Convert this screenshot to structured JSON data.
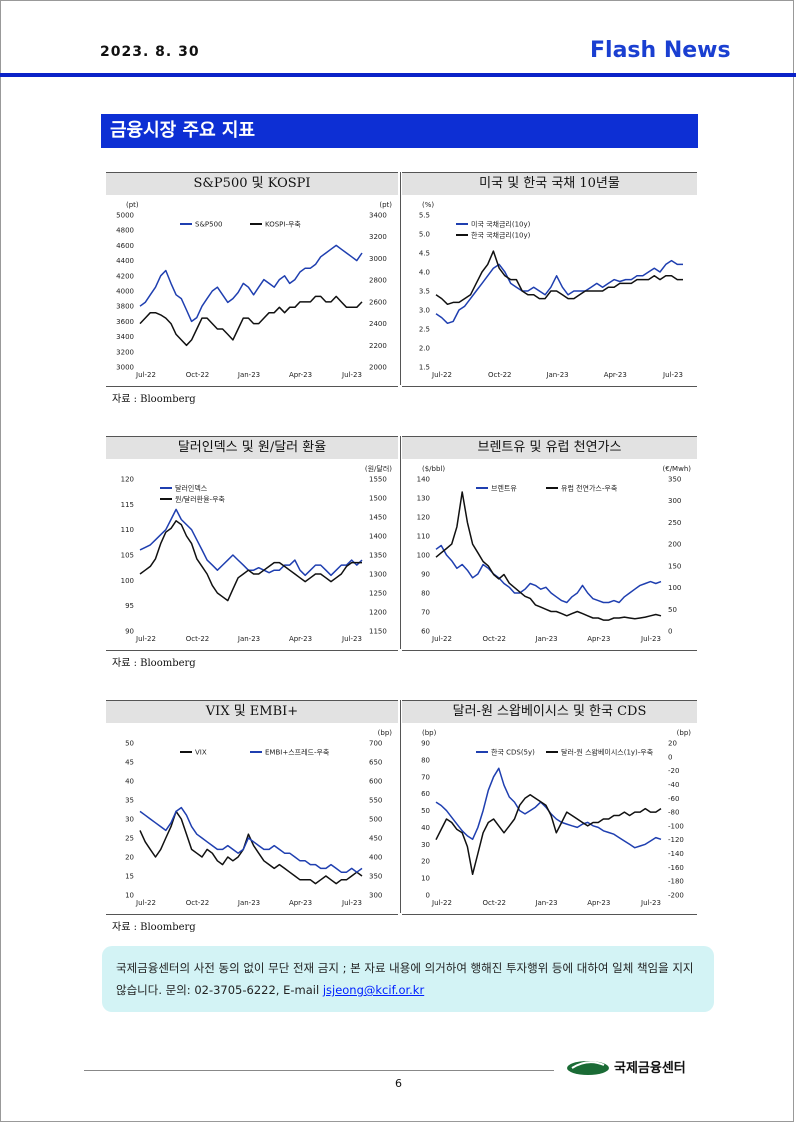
{
  "header": {
    "date": "2023. 8. 30",
    "title": "Flash News"
  },
  "section_title": "금융시장 주요 지표",
  "sources": [
    "자료 : Bloomberg",
    "자료 : Bloomberg",
    "자료 : Bloomberg"
  ],
  "notice": {
    "text": "국제금융센터의 사전 동의 없이 무단 전재 금지 ; 본 자료 내용에 의거하여 행해진 투자행위 등에 대하여 일체 책임을 지지 않습니다. 문의: 02-3705-6222, E-mail ",
    "email": "jsjeong@kcif.or.kr"
  },
  "footer": {
    "page": "6",
    "org": "국제금융센터"
  },
  "colors": {
    "blue": "#1f3fb0",
    "black": "#111111",
    "header_blue": "#0d2fd4"
  },
  "chart_data": [
    {
      "title": "S&P500 및 KOSPI",
      "type": "line",
      "left_unit": "(pt)",
      "right_unit": "(pt)",
      "left_ticks": [
        "5000",
        "4800",
        "4600",
        "4400",
        "4200",
        "4000",
        "3800",
        "3600",
        "3400",
        "3200",
        "3000"
      ],
      "right_ticks": [
        "3400",
        "3200",
        "3000",
        "2800",
        "2600",
        "2400",
        "2200",
        "2000"
      ],
      "x_ticks": [
        "Jul-22",
        "Oct-22",
        "Jan-23",
        "Apr-23",
        "Jul-23"
      ],
      "ylim": [
        3000,
        5000
      ],
      "y2lim": [
        2000,
        3400
      ],
      "series": [
        {
          "name": "S&P500",
          "axis": "left",
          "color": "blue",
          "values": [
            3800,
            3850,
            3950,
            4050,
            4200,
            4270,
            4100,
            3950,
            3900,
            3750,
            3600,
            3650,
            3800,
            3900,
            4000,
            4050,
            3950,
            3850,
            3900,
            3980,
            4100,
            4050,
            3950,
            4050,
            4150,
            4100,
            4050,
            4150,
            4200,
            4100,
            4150,
            4250,
            4300,
            4300,
            4350,
            4450,
            4500,
            4550,
            4600,
            4550,
            4500,
            4450,
            4400,
            4500
          ]
        },
        {
          "name": "KOSPI-우축",
          "axis": "right",
          "color": "black",
          "values": [
            2400,
            2450,
            2500,
            2500,
            2480,
            2450,
            2400,
            2300,
            2250,
            2200,
            2250,
            2350,
            2450,
            2450,
            2400,
            2350,
            2350,
            2300,
            2250,
            2350,
            2450,
            2450,
            2400,
            2400,
            2450,
            2500,
            2500,
            2550,
            2500,
            2550,
            2550,
            2600,
            2600,
            2600,
            2650,
            2650,
            2600,
            2600,
            2650,
            2600,
            2550,
            2550,
            2550,
            2600
          ]
        }
      ]
    },
    {
      "title": "미국 및 한국 국채 10년물",
      "type": "line",
      "left_unit": "(%)",
      "left_ticks": [
        "5.5",
        "5.0",
        "4.5",
        "4.0",
        "3.5",
        "3.0",
        "2.5",
        "2.0",
        "1.5"
      ],
      "x_ticks": [
        "Jul-22",
        "Oct-22",
        "Jan-23",
        "Apr-23",
        "Jul-23"
      ],
      "ylim": [
        1.5,
        5.5
      ],
      "series": [
        {
          "name": "미국 국채금리(10y)",
          "axis": "left",
          "color": "blue",
          "values": [
            2.9,
            2.8,
            2.65,
            2.7,
            3.0,
            3.1,
            3.3,
            3.5,
            3.7,
            3.9,
            4.1,
            4.2,
            4.0,
            3.7,
            3.6,
            3.5,
            3.5,
            3.6,
            3.5,
            3.4,
            3.6,
            3.9,
            3.6,
            3.4,
            3.5,
            3.5,
            3.5,
            3.6,
            3.7,
            3.6,
            3.7,
            3.8,
            3.75,
            3.8,
            3.8,
            3.9,
            3.9,
            4.0,
            4.1,
            4.0,
            4.2,
            4.3,
            4.2,
            4.2
          ]
        },
        {
          "name": "한국 국채금리(10y)",
          "axis": "left",
          "color": "black",
          "values": [
            3.4,
            3.3,
            3.15,
            3.2,
            3.2,
            3.3,
            3.4,
            3.7,
            4.0,
            4.2,
            4.55,
            4.1,
            3.9,
            3.8,
            3.8,
            3.5,
            3.4,
            3.4,
            3.3,
            3.3,
            3.5,
            3.5,
            3.4,
            3.3,
            3.3,
            3.4,
            3.5,
            3.5,
            3.5,
            3.5,
            3.6,
            3.6,
            3.7,
            3.7,
            3.7,
            3.8,
            3.8,
            3.8,
            3.9,
            3.8,
            3.9,
            3.9,
            3.8,
            3.8
          ]
        }
      ]
    },
    {
      "title": "달러인덱스 및 원/달러 환율",
      "type": "line",
      "right_unit": "(원/달러)",
      "left_ticks": [
        "120",
        "115",
        "110",
        "105",
        "100",
        "95",
        "90"
      ],
      "right_ticks": [
        "1550",
        "1500",
        "1450",
        "1400",
        "1350",
        "1300",
        "1250",
        "1200",
        "1150"
      ],
      "x_ticks": [
        "Jul-22",
        "Oct-22",
        "Jan-23",
        "Apr-23",
        "Jul-23"
      ],
      "ylim": [
        90,
        120
      ],
      "y2lim": [
        1150,
        1550
      ],
      "series": [
        {
          "name": "달러인덱스",
          "axis": "left",
          "color": "blue",
          "values": [
            106,
            106.5,
            107,
            108,
            109,
            110,
            112,
            114,
            112,
            111,
            110,
            108,
            106,
            104,
            103,
            102,
            103,
            104,
            105,
            104,
            103,
            102,
            102,
            102.5,
            102,
            101.5,
            102,
            102,
            103,
            103,
            104,
            102,
            101,
            102,
            103,
            103,
            102,
            101,
            102,
            103,
            103,
            104,
            103,
            104
          ]
        },
        {
          "name": "원/달러환율-우축",
          "axis": "right",
          "color": "black",
          "values": [
            1300,
            1310,
            1320,
            1340,
            1380,
            1410,
            1420,
            1440,
            1430,
            1400,
            1380,
            1340,
            1320,
            1300,
            1270,
            1250,
            1240,
            1230,
            1260,
            1290,
            1300,
            1310,
            1300,
            1300,
            1310,
            1320,
            1330,
            1330,
            1320,
            1310,
            1300,
            1290,
            1280,
            1290,
            1300,
            1300,
            1290,
            1280,
            1290,
            1300,
            1320,
            1330,
            1330,
            1330
          ]
        }
      ]
    },
    {
      "title": "브렌트유 및 유럽 천연가스",
      "type": "line",
      "left_unit": "($/bbl)",
      "right_unit": "(€/Mwh)",
      "left_ticks": [
        "140",
        "130",
        "120",
        "110",
        "100",
        "90",
        "80",
        "70",
        "60"
      ],
      "right_ticks": [
        "350",
        "300",
        "250",
        "200",
        "150",
        "100",
        "50",
        "0"
      ],
      "x_ticks": [
        "Jul-22",
        "Oct-22",
        "Jan-23",
        "Apr-23",
        "Jul-23"
      ],
      "ylim": [
        60,
        140
      ],
      "y2lim": [
        0,
        350
      ],
      "series": [
        {
          "name": "브렌트유",
          "axis": "left",
          "color": "blue",
          "values": [
            103,
            105,
            100,
            97,
            93,
            95,
            92,
            88,
            90,
            95,
            93,
            90,
            88,
            85,
            83,
            80,
            80,
            82,
            85,
            84,
            82,
            83,
            80,
            78,
            76,
            75,
            78,
            80,
            84,
            80,
            77,
            76,
            75,
            75,
            76,
            75,
            78,
            80,
            82,
            84,
            85,
            86,
            85,
            86
          ]
        },
        {
          "name": "유럽 천연가스-우축",
          "axis": "right",
          "color": "black",
          "values": [
            170,
            180,
            190,
            200,
            240,
            320,
            250,
            200,
            180,
            160,
            150,
            130,
            120,
            130,
            110,
            100,
            90,
            80,
            75,
            60,
            55,
            50,
            45,
            45,
            40,
            35,
            40,
            45,
            40,
            35,
            30,
            30,
            25,
            25,
            30,
            30,
            32,
            30,
            28,
            30,
            32,
            35,
            38,
            35
          ]
        }
      ]
    },
    {
      "title": "VIX 및 EMBI+",
      "type": "line",
      "right_unit": "(bp)",
      "left_ticks": [
        "50",
        "45",
        "40",
        "35",
        "30",
        "25",
        "20",
        "15",
        "10"
      ],
      "right_ticks": [
        "700",
        "650",
        "600",
        "550",
        "500",
        "450",
        "400",
        "350",
        "300"
      ],
      "x_ticks": [
        "Jul-22",
        "Oct-22",
        "Jan-23",
        "Apr-23",
        "Jul-23"
      ],
      "ylim": [
        10,
        50
      ],
      "y2lim": [
        300,
        700
      ],
      "series": [
        {
          "name": "VIX",
          "axis": "left",
          "color": "black",
          "values": [
            27,
            24,
            22,
            20,
            22,
            25,
            28,
            32,
            30,
            26,
            22,
            21,
            20,
            22,
            21,
            19,
            18,
            20,
            19,
            20,
            22,
            26,
            23,
            21,
            19,
            18,
            17,
            18,
            17,
            16,
            15,
            14,
            14,
            14,
            13,
            14,
            15,
            14,
            13,
            14,
            14,
            15,
            16,
            15
          ]
        },
        {
          "name": "EMBI+스프레드-우축",
          "axis": "right",
          "color": "blue",
          "values": [
            520,
            510,
            500,
            490,
            480,
            470,
            490,
            520,
            530,
            510,
            480,
            460,
            450,
            440,
            430,
            420,
            420,
            430,
            420,
            410,
            420,
            450,
            440,
            430,
            420,
            420,
            430,
            420,
            410,
            410,
            400,
            390,
            390,
            380,
            380,
            370,
            370,
            380,
            370,
            360,
            360,
            370,
            360,
            370
          ]
        }
      ]
    },
    {
      "title": "달러-원 스왑베이시스 및 한국 CDS",
      "type": "line",
      "left_unit": "(bp)",
      "right_unit": "(bp)",
      "left_ticks": [
        "90",
        "80",
        "70",
        "60",
        "50",
        "40",
        "30",
        "20",
        "10",
        "0"
      ],
      "right_ticks": [
        "20",
        "0",
        "-20",
        "-40",
        "-60",
        "-80",
        "-100",
        "-120",
        "-140",
        "-160",
        "-180",
        "-200"
      ],
      "x_ticks": [
        "Jul-22",
        "Oct-22",
        "Jan-23",
        "Apr-23",
        "Jul-23"
      ],
      "ylim": [
        0,
        90
      ],
      "y2lim": [
        -200,
        20
      ],
      "series": [
        {
          "name": "한국 CDS(5y)",
          "axis": "left",
          "color": "blue",
          "values": [
            55,
            53,
            50,
            46,
            42,
            38,
            35,
            33,
            40,
            50,
            62,
            70,
            75,
            65,
            58,
            55,
            50,
            48,
            50,
            52,
            55,
            52,
            48,
            45,
            43,
            42,
            41,
            40,
            42,
            43,
            41,
            40,
            38,
            37,
            36,
            34,
            32,
            30,
            28,
            29,
            30,
            32,
            34,
            33
          ]
        },
        {
          "name": "달러-원 스왑베이시스(1y)-우축",
          "axis": "right",
          "color": "black",
          "values": [
            -120,
            -105,
            -90,
            -95,
            -105,
            -110,
            -130,
            -170,
            -140,
            -110,
            -95,
            -90,
            -100,
            -110,
            -100,
            -90,
            -70,
            -60,
            -55,
            -60,
            -65,
            -70,
            -85,
            -110,
            -95,
            -80,
            -85,
            -90,
            -95,
            -100,
            -95,
            -95,
            -90,
            -90,
            -85,
            -85,
            -80,
            -85,
            -80,
            -80,
            -75,
            -80,
            -80,
            -75
          ]
        }
      ]
    }
  ]
}
